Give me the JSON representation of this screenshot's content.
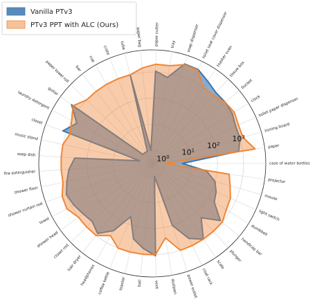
{
  "chart_data": {
    "type": "radar",
    "scale": "log",
    "rings": [
      "10^0",
      "10^1",
      "10^2",
      "10^3"
    ],
    "ring_values": [
      1,
      10,
      100,
      1000
    ],
    "legend": {
      "placement": "top-left"
    },
    "categories": [
      "case of water bottles",
      "paper",
      "ironing board",
      "toilet paper dispenser",
      "clock",
      "bucket",
      "tissue box",
      "toaster oven",
      "toilet seat cover dispenser",
      "soap dispenser",
      "tray",
      "paper cutter",
      "paper bag",
      "tube",
      "crate",
      "cup",
      "bar",
      "paper towel roll",
      "guitar",
      "laundry detergent",
      "closet",
      "music stand",
      "soap dish",
      "fire extinguisher",
      "shower floor",
      "shower curtain rod",
      "towel",
      "shower head",
      "closet rod",
      "hair dryer",
      "headphones",
      "coffee kettle",
      "toaster",
      "ball",
      "vent",
      "dustpan",
      "power outlet",
      "coat rack",
      "scale",
      "plunger",
      "handicap bar",
      "dumbbell",
      "light switch",
      "mouse",
      "projector"
    ],
    "series": [
      {
        "name": "Vanilla PTv3",
        "color": "#3b75af",
        "values": [
          4.5,
          700,
          1000,
          1000,
          1300,
          1400,
          1400,
          2000,
          3200,
          3200,
          700,
          1100,
          1,
          1000,
          1,
          1,
          1,
          1,
          2100,
          600,
          1400,
          1,
          300,
          500,
          700,
          1000,
          800,
          600,
          500,
          800,
          300,
          50,
          300,
          600,
          1100,
          1,
          100,
          500,
          1000,
          200,
          800,
          200,
          150,
          100,
          40
        ]
      },
      {
        "name": "PTv3 PPT with ALC (Ours)",
        "color": "#ef8636",
        "values": [
          1,
          3000,
          1300,
          1300,
          1600,
          1400,
          1000,
          1000,
          3000,
          3000,
          2000,
          2000,
          1500,
          1000,
          1000,
          1000,
          1000,
          1000,
          1800,
          1000,
          700,
          1000,
          1000,
          1000,
          1000,
          1500,
          1600,
          1000,
          1000,
          1000,
          500,
          1000,
          1000,
          1000,
          1000,
          250,
          1000,
          1000,
          1000,
          1000,
          1000,
          700,
          600,
          400,
          300
        ]
      }
    ]
  }
}
